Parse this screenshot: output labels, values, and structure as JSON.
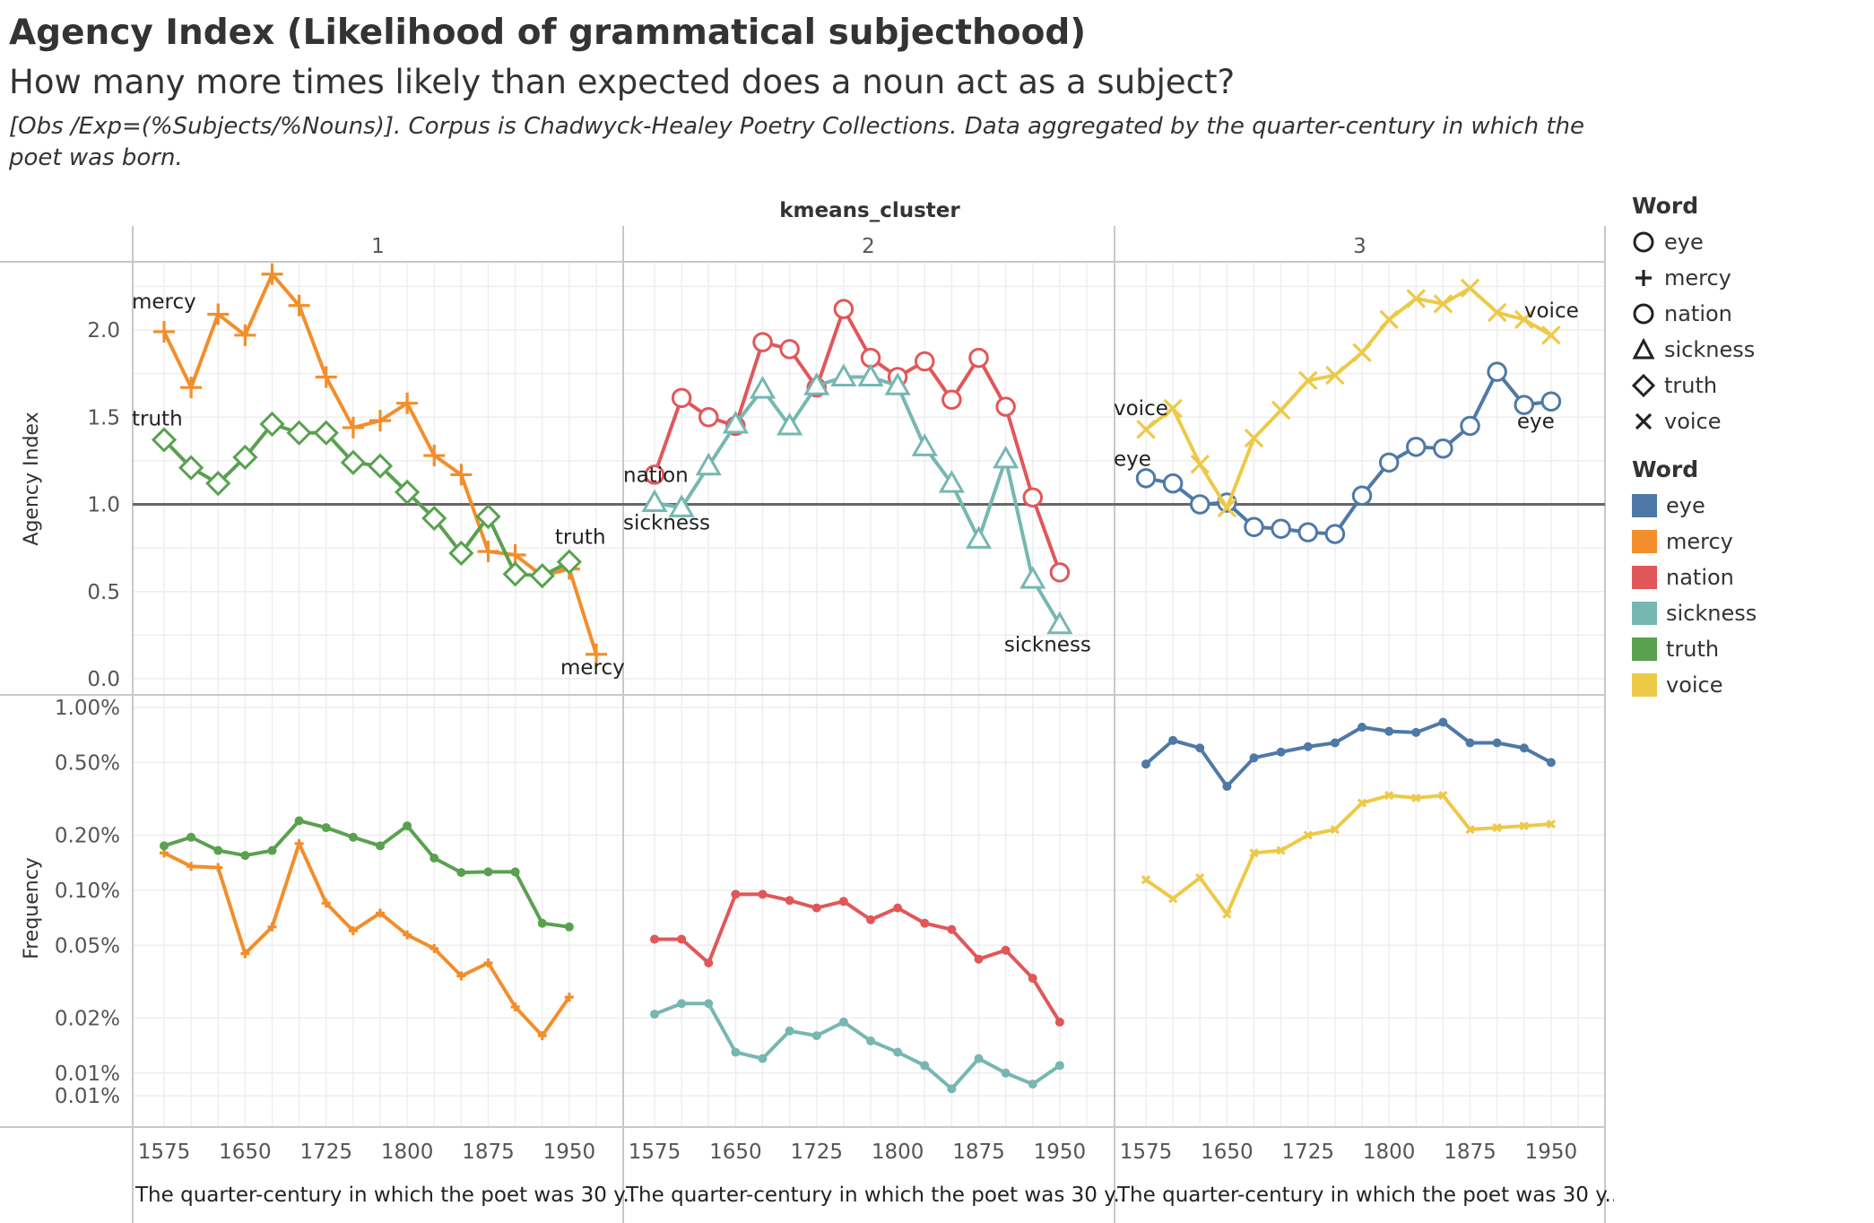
{
  "title": "Agency Index (Likelihood of grammatical subjecthood)",
  "subtitle": "How many more times likely than expected does a noun act as a subject?",
  "description": "[Obs /Exp=(%Subjects/%Nouns)]. Corpus is Chadwyck-Healey Poetry Collections. Data aggregated by the quarter-century in which the poet was born.",
  "legend_shape": {
    "title": "Word",
    "items": [
      {
        "label": "eye",
        "shape": "circle"
      },
      {
        "label": "mercy",
        "shape": "plus"
      },
      {
        "label": "nation",
        "shape": "circle"
      },
      {
        "label": "sickness",
        "shape": "triangle"
      },
      {
        "label": "truth",
        "shape": "diamond"
      },
      {
        "label": "voice",
        "shape": "x"
      }
    ]
  },
  "legend_color": {
    "title": "Word",
    "items": [
      {
        "label": "eye",
        "color": "#4e79a7"
      },
      {
        "label": "mercy",
        "color": "#f28e2b"
      },
      {
        "label": "nation",
        "color": "#e15759"
      },
      {
        "label": "sickness",
        "color": "#76b7b2"
      },
      {
        "label": "truth",
        "color": "#59a14f"
      },
      {
        "label": "voice",
        "color": "#edc948"
      }
    ]
  },
  "chart_data": {
    "type": "line",
    "column_header": "kmeans_cluster",
    "panels": [
      "1",
      "2",
      "3"
    ],
    "x": [
      1575,
      1600,
      1625,
      1650,
      1675,
      1700,
      1725,
      1750,
      1775,
      1800,
      1825,
      1850,
      1875,
      1900,
      1925,
      1950,
      1975
    ],
    "x_ticks": [
      "1575",
      "1650",
      "1725",
      "1800",
      "1875",
      "1950"
    ],
    "x_tick_values": [
      1575,
      1650,
      1725,
      1800,
      1875,
      1950
    ],
    "xlabel": "The quarter-century in which the poet was 30 y..",
    "agency": {
      "ylabel": "Agency Index",
      "ylim": [
        0,
        2.45
      ],
      "y_ticks": [
        "0.0",
        "0.5",
        "1.0",
        "1.5",
        "2.0"
      ],
      "y_tick_values": [
        0,
        0.5,
        1,
        1.5,
        2
      ],
      "reference_line": 1.0
    },
    "frequency": {
      "ylabel": "Frequency",
      "scale": "log",
      "y_ticks": [
        "0.01%",
        "0.01%",
        "0.02%",
        "0.05%",
        "0.10%",
        "0.20%",
        "0.50%",
        "1.00%"
      ],
      "y_tick_values": [
        0.0075,
        0.01,
        0.02,
        0.05,
        0.1,
        0.2,
        0.5,
        1.0
      ]
    },
    "series": [
      {
        "name": "mercy",
        "cluster": "1",
        "color": "#f28e2b",
        "shape": "plus",
        "agency": [
          1.99,
          1.67,
          2.09,
          1.97,
          2.32,
          2.14,
          1.73,
          1.44,
          1.48,
          1.58,
          1.28,
          1.17,
          0.73,
          0.71,
          0.59,
          0.63,
          0.14
        ],
        "frequency": [
          0.16,
          0.135,
          0.133,
          0.045,
          0.063,
          0.18,
          0.085,
          0.06,
          0.075,
          0.057,
          0.048,
          0.034,
          0.04,
          0.023,
          0.016,
          0.026,
          null
        ],
        "label_start": "mercy",
        "label_end": "mercy"
      },
      {
        "name": "truth",
        "cluster": "1",
        "color": "#59a14f",
        "shape": "diamond",
        "agency": [
          1.37,
          1.21,
          1.12,
          1.27,
          1.46,
          1.41,
          1.41,
          1.24,
          1.22,
          1.07,
          0.92,
          0.72,
          0.93,
          0.6,
          0.59,
          0.67,
          null
        ],
        "frequency": [
          0.175,
          0.195,
          0.165,
          0.155,
          0.165,
          0.24,
          0.22,
          0.195,
          0.175,
          0.225,
          0.15,
          0.125,
          0.126,
          0.126,
          0.066,
          0.063,
          null
        ],
        "label_start": "truth",
        "label_end": "truth"
      },
      {
        "name": "nation",
        "cluster": "2",
        "color": "#e15759",
        "shape": "circle",
        "agency": [
          1.17,
          1.61,
          1.5,
          1.45,
          1.93,
          1.89,
          1.67,
          2.12,
          1.84,
          1.73,
          1.82,
          1.6,
          1.84,
          1.56,
          1.04,
          0.61,
          null
        ],
        "frequency": [
          0.054,
          0.054,
          0.04,
          0.095,
          0.095,
          0.088,
          0.08,
          0.087,
          0.069,
          0.08,
          0.066,
          0.061,
          0.042,
          0.047,
          0.033,
          0.019,
          null
        ],
        "label_start": "nation",
        "label_end": ""
      },
      {
        "name": "sickness",
        "cluster": "2",
        "color": "#76b7b2",
        "shape": "triangle",
        "agency": [
          1.01,
          0.98,
          1.22,
          1.46,
          1.66,
          1.45,
          1.68,
          1.73,
          1.73,
          1.68,
          1.33,
          1.12,
          0.8,
          1.26,
          0.57,
          0.31,
          null
        ],
        "frequency": [
          0.021,
          0.024,
          0.024,
          0.013,
          0.012,
          0.017,
          0.016,
          0.019,
          0.015,
          0.013,
          0.011,
          0.0082,
          0.012,
          0.01,
          0.0087,
          0.011,
          null
        ],
        "label_start": "sickness",
        "label_end": "sickness"
      },
      {
        "name": "eye",
        "cluster": "3",
        "color": "#4e79a7",
        "shape": "circle",
        "agency": [
          1.15,
          1.12,
          1.0,
          1.01,
          0.87,
          0.86,
          0.84,
          0.83,
          1.05,
          1.24,
          1.33,
          1.32,
          1.45,
          1.76,
          1.57,
          1.59,
          null
        ],
        "frequency": [
          0.49,
          0.66,
          0.6,
          0.37,
          0.53,
          0.57,
          0.61,
          0.64,
          0.78,
          0.74,
          0.73,
          0.83,
          0.64,
          0.64,
          0.6,
          0.5,
          null
        ],
        "label_start": "eye",
        "label_end": "eye"
      },
      {
        "name": "voice",
        "cluster": "3",
        "color": "#edc948",
        "shape": "x",
        "agency": [
          1.43,
          1.55,
          1.23,
          0.98,
          1.38,
          1.54,
          1.71,
          1.74,
          1.87,
          2.06,
          2.18,
          2.15,
          2.24,
          2.1,
          2.06,
          1.97,
          null
        ],
        "frequency": [
          0.114,
          0.09,
          0.117,
          0.074,
          0.16,
          0.165,
          0.2,
          0.215,
          0.3,
          0.33,
          0.32,
          0.33,
          0.215,
          0.22,
          0.225,
          0.23,
          null
        ],
        "label_start": "voice",
        "label_end": "voice"
      }
    ]
  }
}
